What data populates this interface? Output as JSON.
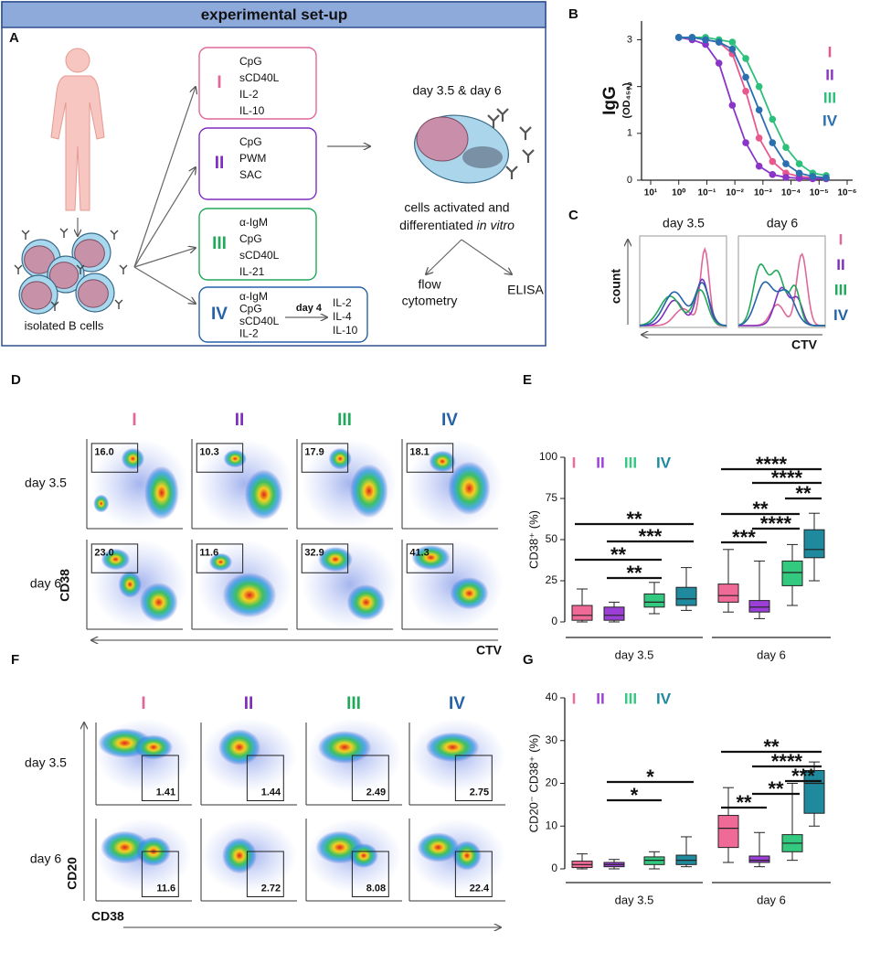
{
  "figure": {
    "panel_labels": [
      "A",
      "B",
      "C",
      "D",
      "E",
      "F",
      "G"
    ],
    "condition_colors": [
      "#e0679a",
      "#7f2fc0",
      "#22a85a",
      "#2563a8"
    ],
    "panel_a": {
      "title": "experimental set-up",
      "source_label": "isolated B cells",
      "conditions": [
        {
          "numeral": "I",
          "stimuli": [
            "CpG",
            "sCD40L",
            "IL-2",
            "IL-10"
          ]
        },
        {
          "numeral": "II",
          "stimuli": [
            "CpG",
            "PWM",
            "SAC"
          ]
        },
        {
          "numeral": "III",
          "stimuli": [
            "α-IgM",
            "CpG",
            "sCD40L",
            "IL-21"
          ]
        },
        {
          "numeral": "IV",
          "stimuli": [
            "α-IgM",
            "CpG",
            "sCD40L",
            "IL-2"
          ],
          "switch_day": "day 4",
          "later_stimuli": [
            "IL-2",
            "IL-4",
            "IL-10"
          ]
        }
      ],
      "timepoints": "day 3.5 & day 6",
      "activation": [
        "cells activated and",
        "differentiated"
      ],
      "activation_italic": "in vitro",
      "readouts": [
        [
          "flow",
          "cytometry"
        ],
        [
          "ELISA"
        ]
      ]
    },
    "panel_c": {
      "titles": [
        "day 3.5",
        "day 6"
      ],
      "y_label": "count",
      "x_label": "CTV",
      "legend": [
        "I",
        "II",
        "III",
        "IV"
      ]
    },
    "panel_d": {
      "columns": [
        "I",
        "II",
        "III",
        "IV"
      ],
      "rows": [
        "day 3.5",
        "day 6"
      ],
      "y_label": "CD38",
      "x_label": "CTV",
      "gates": [
        [
          "16.0",
          "10.3",
          "17.9",
          "18.1"
        ],
        [
          "23.0",
          "11.6",
          "32.9",
          "41.3"
        ]
      ]
    },
    "panel_f": {
      "columns": [
        "I",
        "II",
        "III",
        "IV"
      ],
      "rows": [
        "day 3.5",
        "day 6"
      ],
      "y_label": "CD20",
      "x_label": "CD38",
      "gates": [
        [
          "1.41",
          "1.44",
          "2.49",
          "2.75"
        ],
        [
          "11.6",
          "2.72",
          "8.08",
          "22.4"
        ]
      ]
    }
  },
  "chart_data": [
    {
      "type": "line",
      "ylabel": "IgG",
      "ylabel_sub": "(OD₄₅₀)",
      "log_x": true,
      "x": [
        1,
        0.333,
        0.111,
        0.037,
        0.0123,
        0.0041,
        0.00137,
        0.000457,
        0.000152,
        5.08e-05,
        1.69e-05,
        5.6e-06
      ],
      "xlim": [
        10,
        1e-06
      ],
      "xticks": [
        {
          "value": 10,
          "label": "10¹"
        },
        {
          "value": 1,
          "label": "10⁰"
        },
        {
          "value": 0.1,
          "label": "10⁻¹"
        },
        {
          "value": 0.01,
          "label": "10⁻²"
        },
        {
          "value": 0.001,
          "label": "10⁻³"
        },
        {
          "value": 0.0001,
          "label": "10⁻⁴"
        },
        {
          "value": 1e-05,
          "label": "10⁻⁵"
        },
        {
          "value": 1e-06,
          "label": "10⁻⁶"
        }
      ],
      "ylim": [
        0,
        3.4
      ],
      "yticks": [
        0,
        1,
        2,
        3
      ],
      "series": [
        {
          "name": "I",
          "color": "#e8588f",
          "values": [
            3.05,
            3.05,
            3.0,
            2.95,
            2.7,
            1.9,
            0.9,
            0.4,
            0.15,
            0.08,
            0.05,
            0.04
          ]
        },
        {
          "name": "II",
          "color": "#8a35c8",
          "values": [
            3.05,
            3.0,
            2.9,
            2.5,
            1.6,
            0.8,
            0.3,
            0.12,
            0.06,
            0.04,
            0.03,
            0.03
          ]
        },
        {
          "name": "III",
          "color": "#2cc07a",
          "values": [
            3.05,
            3.05,
            3.05,
            3.0,
            2.95,
            2.6,
            2.0,
            1.3,
            0.7,
            0.35,
            0.15,
            0.1
          ]
        },
        {
          "name": "IV",
          "color": "#2a6fb0",
          "values": [
            3.05,
            3.05,
            3.0,
            2.95,
            2.8,
            2.2,
            1.5,
            0.8,
            0.35,
            0.15,
            0.08,
            0.05
          ]
        }
      ]
    },
    {
      "type": "box",
      "ylabel": "CD38⁺ (%)",
      "groups": [
        "day 3.5",
        "day 6"
      ],
      "ylim": [
        0,
        100
      ],
      "yticks": [
        0,
        25,
        50,
        75,
        100
      ],
      "series": [
        {
          "name": "I",
          "color": "#f06a98",
          "values": [
            [
              0,
              1,
              4,
              10,
              20
            ],
            [
              6,
              12,
              16,
              23,
              44
            ]
          ]
        },
        {
          "name": "II",
          "color": "#9b3fd6",
          "values": [
            [
              0,
              1,
              4,
              9,
              12
            ],
            [
              2,
              6,
              9,
              13,
              37
            ]
          ]
        },
        {
          "name": "III",
          "color": "#33c97f",
          "values": [
            [
              5,
              9,
              12,
              17,
              24
            ],
            [
              10,
              22,
              30,
              37,
              47
            ]
          ]
        },
        {
          "name": "IV",
          "color": "#1f8a9e",
          "values": [
            [
              7,
              10,
              14,
              21,
              33
            ],
            [
              25,
              39,
              44,
              56,
              66
            ]
          ]
        }
      ],
      "annotations": [
        "**",
        "***",
        "**",
        "**",
        "****",
        "****",
        "**",
        "**",
        "****",
        "***"
      ]
    },
    {
      "type": "box",
      "ylabel": "CD20⁻ CD38⁺ (%)",
      "groups": [
        "day 3.5",
        "day 6"
      ],
      "ylim": [
        0,
        40
      ],
      "yticks": [
        0,
        10,
        20,
        30,
        40
      ],
      "series": [
        {
          "name": "I",
          "color": "#f06a98",
          "values": [
            [
              0,
              0.3,
              1,
              1.8,
              3.5
            ],
            [
              1.5,
              5,
              9.5,
              12.5,
              19
            ]
          ]
        },
        {
          "name": "II",
          "color": "#9b3fd6",
          "values": [
            [
              0,
              0.5,
              1,
              1.5,
              2.2
            ],
            [
              0.5,
              1.5,
              2,
              3,
              8.5
            ]
          ]
        },
        {
          "name": "III",
          "color": "#33c97f",
          "values": [
            [
              0,
              1,
              2,
              2.8,
              4
            ],
            [
              2,
              4,
              6,
              8,
              20
            ]
          ]
        },
        {
          "name": "IV",
          "color": "#1f8a9e",
          "values": [
            [
              0.5,
              1,
              2,
              3.2,
              7.5
            ],
            [
              10,
              13,
              20,
              23,
              25
            ]
          ]
        }
      ],
      "annotations": [
        "*",
        "*",
        "**",
        "****",
        "***",
        "**",
        "**"
      ]
    }
  ]
}
